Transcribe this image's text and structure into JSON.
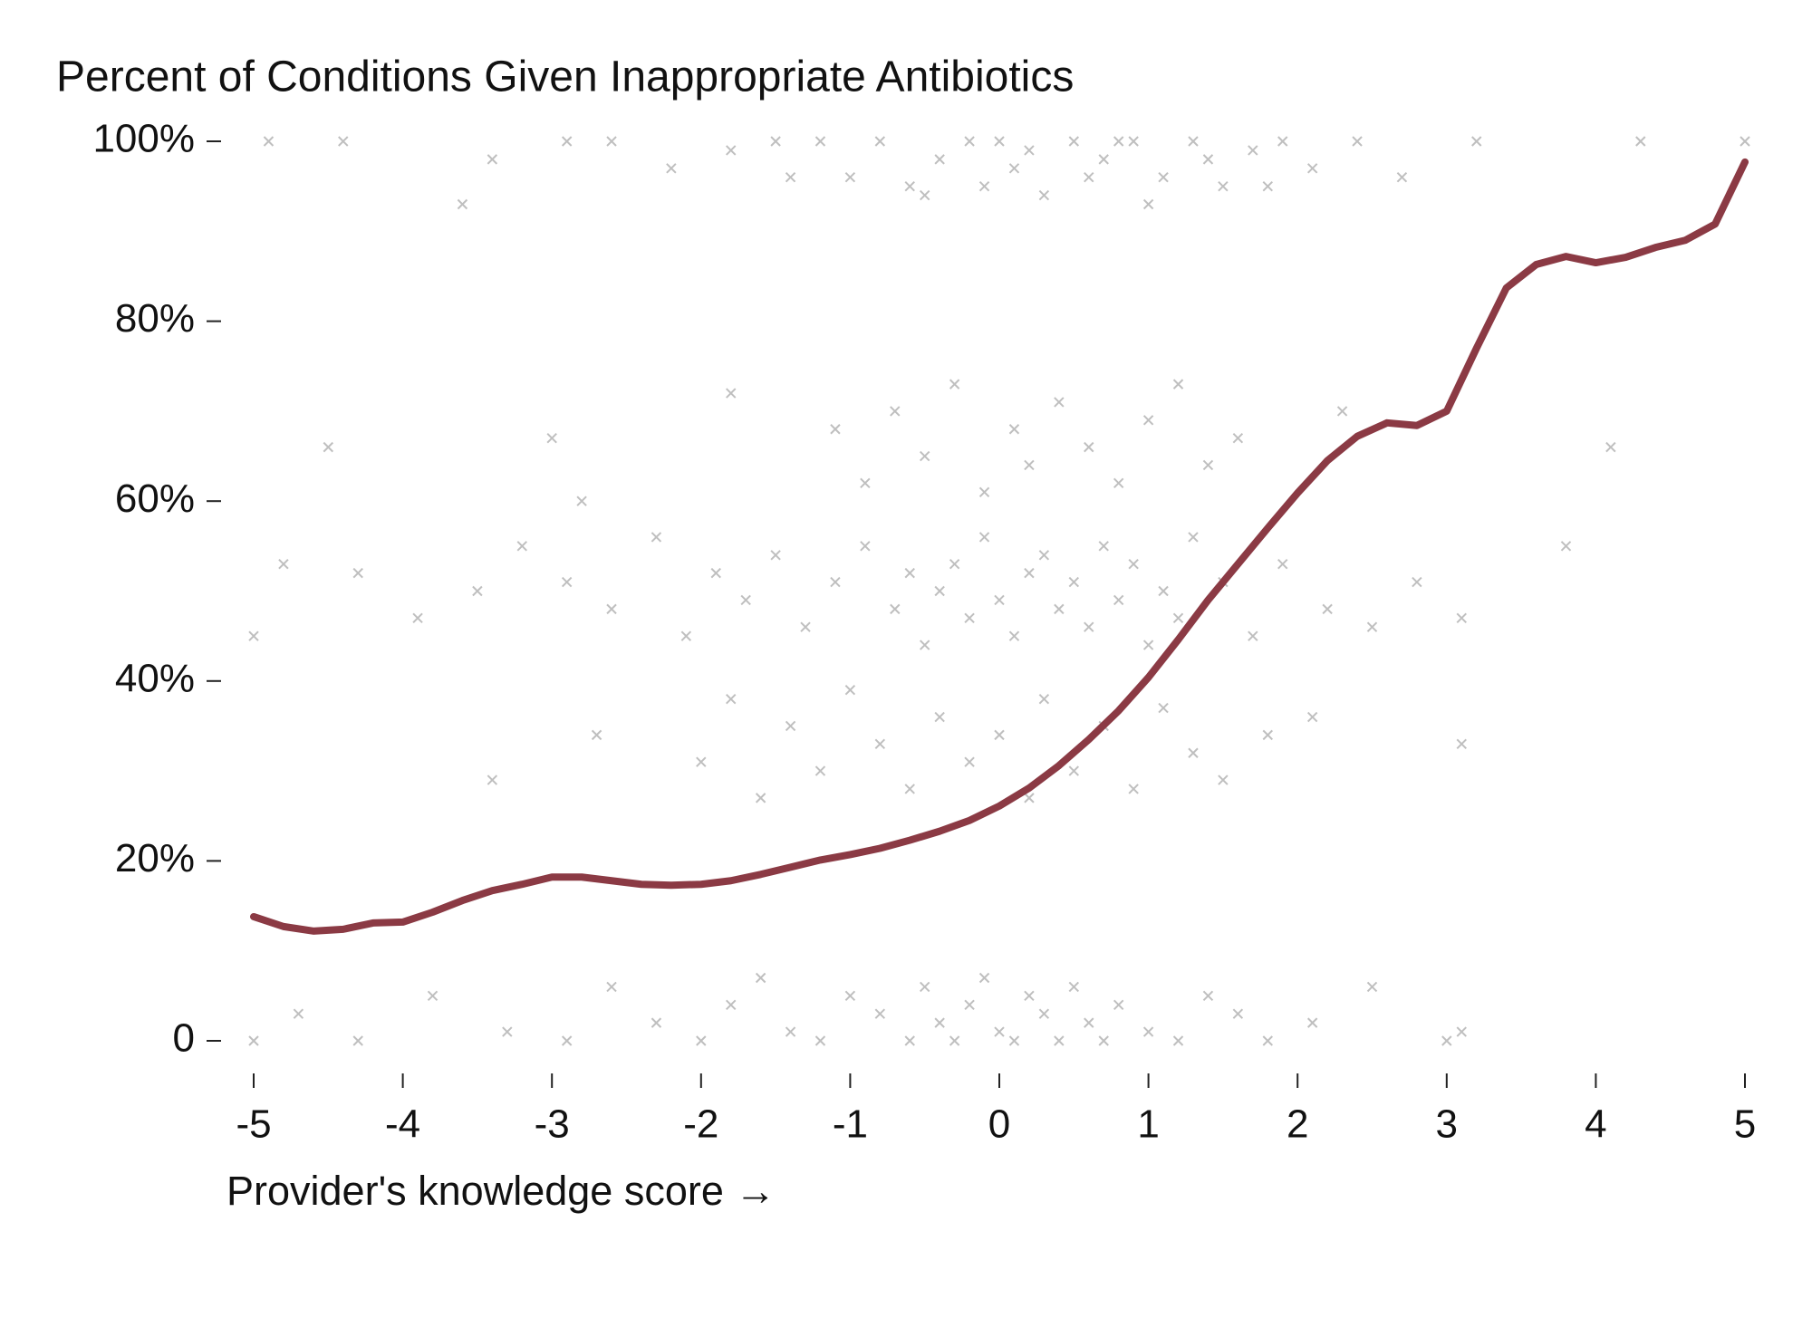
{
  "chart_data": {
    "type": "scatter",
    "title": "Percent of Conditions Given Inappropriate Antibiotics",
    "xlabel": "Provider's knowledge score →",
    "xlim": [
      -5,
      5
    ],
    "xticks": [
      -5,
      -4,
      -3,
      -2,
      -1,
      0,
      1,
      2,
      3,
      4,
      5
    ],
    "ylim": [
      0,
      100
    ],
    "yticks": [
      0,
      {
        "value": 20,
        "label": "20%"
      },
      {
        "value": 40,
        "label": "40%"
      },
      {
        "value": 60,
        "label": "60%"
      },
      {
        "value": 80,
        "label": "80%"
      },
      {
        "value": 100,
        "label": "100%"
      }
    ],
    "scatter": {
      "color": "#000000",
      "x": [
        -4.9,
        -4.4,
        -3.4,
        -2.9,
        -2.6,
        -2.2,
        -1.8,
        -1.5,
        -1.2,
        -1,
        -0.8,
        -0.6,
        -0.4,
        -0.2,
        0,
        0.1,
        0.3,
        0.5,
        0.7,
        0.9,
        1.1,
        1.3,
        1.5,
        1.7,
        1.9,
        2.1,
        2.4,
        2.7,
        3.2,
        4.3,
        5,
        -0.5,
        0.2,
        0.6,
        1.0,
        1.4,
        1.8,
        0.8,
        -0.1,
        -1.4,
        -3.6,
        -4.5,
        -3,
        -2.8,
        -1.8,
        -1.1,
        -0.9,
        -0.7,
        -0.5,
        -0.3,
        -0.1,
        0.1,
        0.2,
        0.4,
        0.6,
        0.8,
        1.0,
        1.2,
        1.4,
        1.6,
        2.3,
        4.1,
        3.8,
        -5,
        -4.8,
        -4.3,
        -3.9,
        -3.5,
        -3.2,
        -2.9,
        -2.6,
        -2.3,
        -2.1,
        -1.9,
        -1.7,
        -1.5,
        -1.3,
        -1.1,
        -0.9,
        -0.7,
        -0.6,
        -0.5,
        -0.4,
        -0.3,
        -0.2,
        -0.1,
        0,
        0.1,
        0.2,
        0.3,
        0.4,
        0.5,
        0.6,
        0.7,
        0.8,
        0.9,
        1,
        1.1,
        1.2,
        1.3,
        1.5,
        1.7,
        1.9,
        2.2,
        2.5,
        2.8,
        3.1,
        -3.4,
        -2.7,
        -2,
        -1.8,
        -1.6,
        -1.4,
        -1.2,
        -1,
        -0.8,
        -0.6,
        -0.4,
        -0.2,
        0,
        0.2,
        0.3,
        0.5,
        0.7,
        0.9,
        1.1,
        1.3,
        1.5,
        1.8,
        2.1,
        3.1,
        -5,
        -4.7,
        -4.3,
        -3.8,
        -3.3,
        -2.9,
        -2.6,
        -2.3,
        -2,
        -1.8,
        -1.6,
        -1.4,
        -1.2,
        -1,
        -0.8,
        -0.6,
        -0.5,
        -0.4,
        -0.3,
        -0.2,
        -0.1,
        0,
        0.1,
        0.2,
        0.3,
        0.4,
        0.5,
        0.6,
        0.7,
        0.8,
        1,
        1.2,
        1.4,
        1.6,
        1.8,
        2.1,
        2.5,
        3,
        3.1
      ],
      "y": [
        100,
        100,
        98,
        100,
        100,
        97,
        99,
        100,
        100,
        96,
        100,
        95,
        98,
        100,
        100,
        97,
        94,
        100,
        98,
        100,
        96,
        100,
        95,
        99,
        100,
        97,
        100,
        96,
        100,
        100,
        100,
        94,
        99,
        96,
        93,
        98,
        95,
        100,
        95,
        96,
        93,
        66,
        67,
        60,
        72,
        68,
        62,
        70,
        65,
        73,
        61,
        68,
        64,
        71,
        66,
        62,
        69,
        73,
        64,
        67,
        70,
        66,
        55,
        45,
        53,
        52,
        47,
        50,
        55,
        51,
        48,
        56,
        45,
        52,
        49,
        54,
        46,
        51,
        55,
        48,
        52,
        44,
        50,
        53,
        47,
        56,
        49,
        45,
        52,
        54,
        48,
        51,
        46,
        55,
        49,
        53,
        44,
        50,
        47,
        56,
        51,
        45,
        53,
        48,
        46,
        51,
        47,
        29,
        34,
        31,
        38,
        27,
        35,
        30,
        39,
        33,
        28,
        36,
        31,
        34,
        27,
        38,
        30,
        35,
        28,
        37,
        32,
        29,
        34,
        36,
        33,
        0,
        3,
        0,
        5,
        1,
        0,
        6,
        2,
        0,
        4,
        7,
        1,
        0,
        5,
        3,
        0,
        6,
        2,
        0,
        4,
        7,
        1,
        0,
        5,
        3,
        0,
        6,
        2,
        0,
        4,
        1,
        0,
        5,
        3,
        0,
        2,
        6,
        0,
        1
      ]
    },
    "line": {
      "color": "#8b3a44",
      "x": [
        -5,
        -4.8,
        -4.6,
        -4.4,
        -4.2,
        -4,
        -3.8,
        -3.6,
        -3.4,
        -3.2,
        -3,
        -2.8,
        -2.6,
        -2.4,
        -2.2,
        -2,
        -1.8,
        -1.6,
        -1.4,
        -1.2,
        -1,
        -0.8,
        -0.6,
        -0.4,
        -0.2,
        0,
        0.2,
        0.4,
        0.6,
        0.8,
        1,
        1.2,
        1.4,
        1.6,
        1.8,
        2,
        2.2,
        2.4,
        2.6,
        2.8,
        3,
        3.2,
        3.4,
        3.6,
        3.8,
        4,
        4.2,
        4.4,
        4.6,
        4.8,
        5
      ],
      "y": [
        13.8,
        12.7,
        12.2,
        12.4,
        13.1,
        13.2,
        14.3,
        15.6,
        16.7,
        17.4,
        18.2,
        18.2,
        17.8,
        17.4,
        17.3,
        17.4,
        17.8,
        18.5,
        19.3,
        20.1,
        20.7,
        21.4,
        22.3,
        23.3,
        24.5,
        26.1,
        28.1,
        30.6,
        33.5,
        36.7,
        40.4,
        44.6,
        49,
        53,
        57,
        60.9,
        64.5,
        67.2,
        68.7,
        68.4,
        70,
        77,
        83.7,
        86.3,
        87.2,
        86.5,
        87.1,
        88.2,
        89,
        90.8,
        97.7
      ]
    }
  }
}
